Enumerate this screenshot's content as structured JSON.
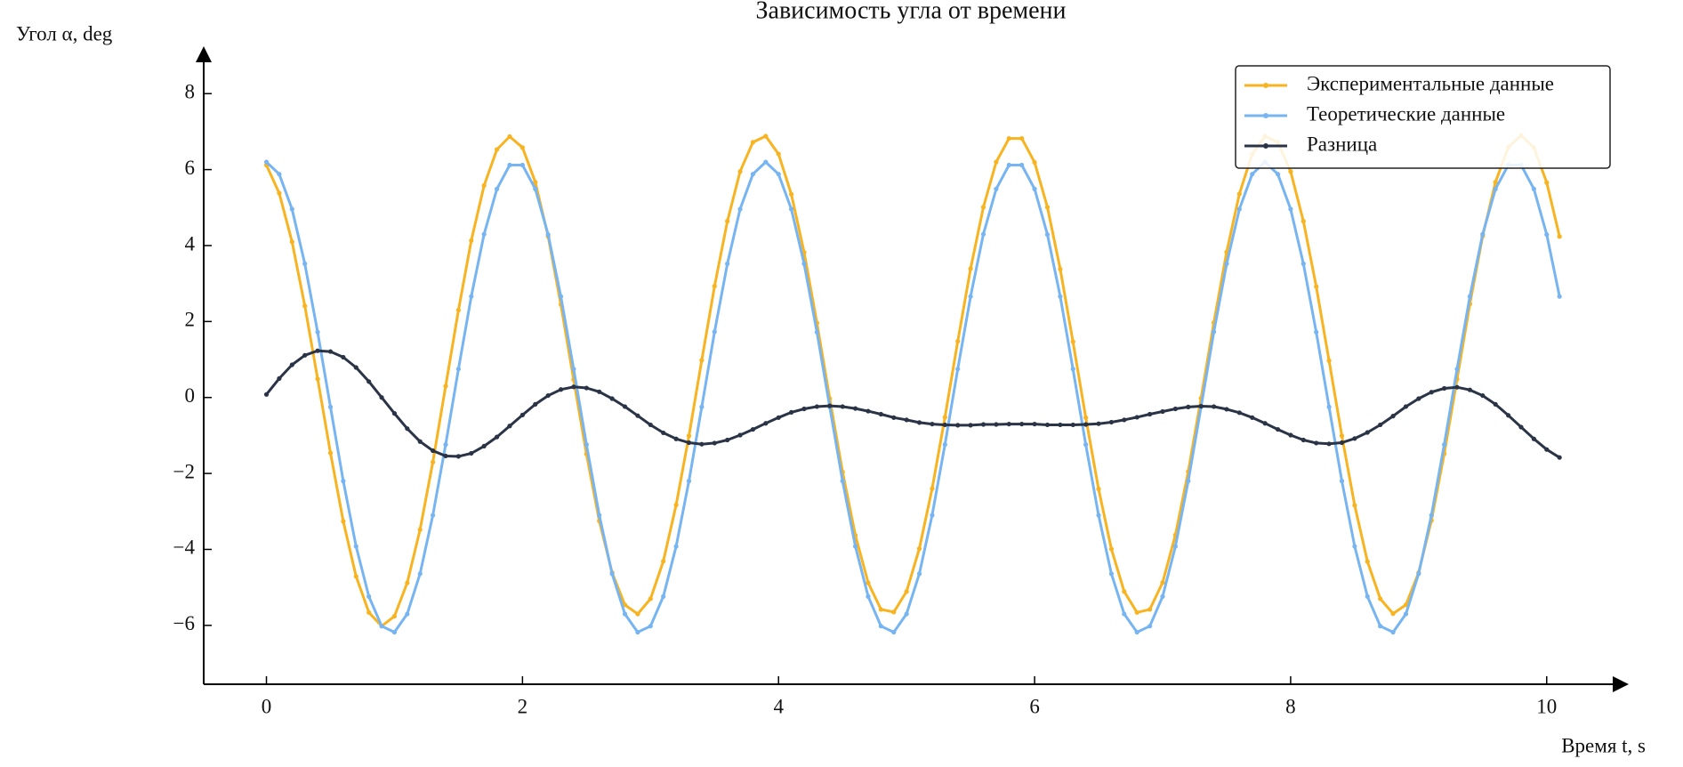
{
  "chart_data": {
    "type": "line",
    "title": "Зависимость угла от времени",
    "y_label": "Угол α, deg",
    "x_label": "Время t, s",
    "x": [
      0,
      0.1,
      0.2,
      0.3,
      0.4,
      0.5,
      0.6,
      0.7,
      0.8,
      0.9,
      1,
      1.1,
      1.2,
      1.3,
      1.4,
      1.5,
      1.6,
      1.7,
      1.8,
      1.9,
      2,
      2.1,
      2.2,
      2.3,
      2.4,
      2.5,
      2.6,
      2.7,
      2.8,
      2.9,
      3,
      3.1,
      3.2,
      3.3,
      3.4,
      3.5,
      3.6,
      3.7,
      3.8,
      3.9,
      4,
      4.1,
      4.2,
      4.3,
      4.4,
      4.5,
      4.6,
      4.7,
      4.8,
      4.9,
      5,
      5.1,
      5.2,
      5.3,
      5.4,
      5.5,
      5.6,
      5.7,
      5.8,
      5.9,
      6,
      6.1,
      6.2,
      6.3,
      6.4,
      6.5,
      6.6,
      6.7,
      6.8,
      6.9,
      7,
      7.1,
      7.2,
      7.3,
      7.4,
      7.5,
      7.6,
      7.7,
      7.8,
      7.9,
      8,
      8.1,
      8.2,
      8.3,
      8.4,
      8.5,
      8.6,
      8.7,
      8.8,
      8.9,
      9,
      9.1,
      9.2,
      9.3,
      9.4,
      9.5,
      9.6,
      9.7,
      9.8,
      9.9,
      10,
      10.1
    ],
    "series": [
      {
        "name": "Экспериментальные данные",
        "color": "#f8b320",
        "values": [
          6.12,
          5.38,
          4.1,
          2.41,
          0.49,
          -1.46,
          -3.26,
          -4.71,
          -5.66,
          -6.02,
          -5.76,
          -4.88,
          -3.48,
          -1.7,
          0.3,
          2.3,
          4.13,
          5.58,
          6.53,
          6.87,
          6.58,
          5.67,
          4.24,
          2.45,
          0.47,
          -1.49,
          -3.25,
          -4.61,
          -5.46,
          -5.7,
          -5.3,
          -4.31,
          -2.83,
          -1.01,
          0.98,
          2.93,
          4.64,
          5.95,
          6.72,
          6.88,
          6.41,
          5.35,
          3.82,
          1.96,
          -0.03,
          -1.96,
          -3.63,
          -4.88,
          -5.58,
          -5.65,
          -5.11,
          -3.98,
          -2.4,
          -0.52,
          1.48,
          3.39,
          5.01,
          6.2,
          6.82,
          6.82,
          6.19,
          5.01,
          3.38,
          1.47,
          -0.53,
          -2.41,
          -3.99,
          -5.11,
          -5.66,
          -5.58,
          -4.87,
          -3.62,
          -1.95,
          -0.02,
          1.97,
          3.83,
          5.36,
          6.41,
          6.88,
          6.72,
          5.95,
          4.64,
          2.92,
          0.97,
          -1.01,
          -2.84,
          -4.32,
          -5.3,
          -5.69,
          -5.46,
          -4.61,
          -3.24,
          -1.48,
          0.48,
          2.46,
          4.25,
          5.67,
          6.59,
          6.9,
          6.58,
          5.66,
          4.24
        ]
      },
      {
        "name": "Теоретические данные",
        "color": "#77b4f2",
        "values": [
          6.2,
          5.88,
          4.96,
          3.52,
          1.72,
          -0.25,
          -2.2,
          -3.92,
          -5.24,
          -6.02,
          -6.18,
          -5.7,
          -4.64,
          -3.1,
          -1.24,
          0.75,
          2.66,
          4.3,
          5.49,
          6.12,
          6.12,
          5.49,
          4.29,
          2.66,
          0.75,
          -1.24,
          -3.1,
          -4.64,
          -5.7,
          -6.18,
          -6.02,
          -5.24,
          -3.92,
          -2.2,
          -0.25,
          1.73,
          3.52,
          4.96,
          5.88,
          6.2,
          5.88,
          4.96,
          3.52,
          1.72,
          -0.25,
          -2.2,
          -3.92,
          -5.24,
          -6.02,
          -6.18,
          -5.7,
          -4.64,
          -3.1,
          -1.24,
          0.75,
          2.66,
          4.3,
          5.49,
          6.12,
          6.12,
          5.49,
          4.29,
          2.66,
          0.75,
          -1.24,
          -3.1,
          -4.64,
          -5.7,
          -6.18,
          -6.02,
          -5.24,
          -3.92,
          -2.2,
          -0.25,
          1.73,
          3.52,
          4.96,
          5.88,
          6.2,
          5.88,
          4.96,
          3.52,
          1.72,
          -0.25,
          -2.2,
          -3.92,
          -5.24,
          -6.02,
          -6.18,
          -5.7,
          -4.64,
          -3.1,
          -1.24,
          0.75,
          2.66,
          4.3,
          5.49,
          6.12,
          6.12,
          5.49,
          4.29,
          2.66
        ]
      },
      {
        "name": "Разница",
        "color": "#2a3446",
        "values": [
          0.08,
          0.5,
          0.86,
          1.11,
          1.23,
          1.21,
          1.06,
          0.79,
          0.42,
          0.0,
          -0.42,
          -0.82,
          -1.16,
          -1.4,
          -1.54,
          -1.55,
          -1.47,
          -1.28,
          -1.04,
          -0.75,
          -0.46,
          -0.18,
          0.05,
          0.21,
          0.28,
          0.25,
          0.15,
          -0.03,
          -0.24,
          -0.48,
          -0.72,
          -0.93,
          -1.09,
          -1.19,
          -1.23,
          -1.2,
          -1.12,
          -0.99,
          -0.84,
          -0.68,
          -0.53,
          -0.39,
          -0.3,
          -0.24,
          -0.22,
          -0.24,
          -0.29,
          -0.36,
          -0.44,
          -0.53,
          -0.59,
          -0.66,
          -0.7,
          -0.72,
          -0.73,
          -0.73,
          -0.71,
          -0.71,
          -0.7,
          -0.7,
          -0.7,
          -0.72,
          -0.72,
          -0.72,
          -0.71,
          -0.69,
          -0.65,
          -0.59,
          -0.52,
          -0.44,
          -0.37,
          -0.3,
          -0.25,
          -0.23,
          -0.24,
          -0.31,
          -0.4,
          -0.53,
          -0.68,
          -0.84,
          -0.99,
          -1.12,
          -1.2,
          -1.22,
          -1.19,
          -1.08,
          -0.92,
          -0.72,
          -0.49,
          -0.24,
          -0.03,
          0.14,
          0.24,
          0.27,
          0.2,
          0.05,
          -0.18,
          -0.47,
          -0.78,
          -1.09,
          -1.37,
          -1.58
        ]
      }
    ],
    "xlim": [
      -0.49,
      10.62
    ],
    "ylim": [
      -7.55,
      9.2
    ],
    "xticks": [
      0,
      2,
      4,
      6,
      8,
      10
    ],
    "yticks": [
      {
        "value": -6,
        "label": "−6"
      },
      {
        "value": -4,
        "label": "−4"
      },
      {
        "value": -2,
        "label": "−2"
      },
      0,
      2,
      4,
      6,
      8
    ],
    "legend": "upper right"
  }
}
